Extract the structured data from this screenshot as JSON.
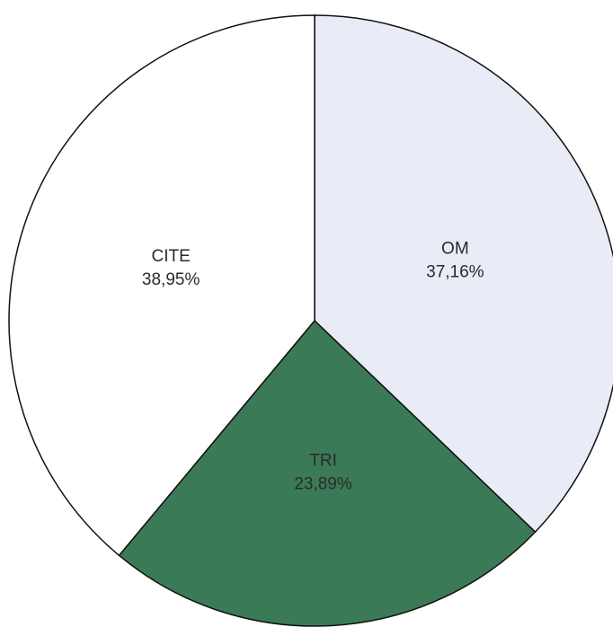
{
  "chart_data": {
    "type": "pie",
    "categories": [
      "OM",
      "TRI",
      "CITE"
    ],
    "values": [
      37.16,
      23.89,
      38.95
    ],
    "value_labels": [
      "37,16%",
      "23,89%",
      "38,95%"
    ],
    "colors": [
      "#e9ebf7",
      "#3b7a56",
      "#ffffff"
    ]
  }
}
